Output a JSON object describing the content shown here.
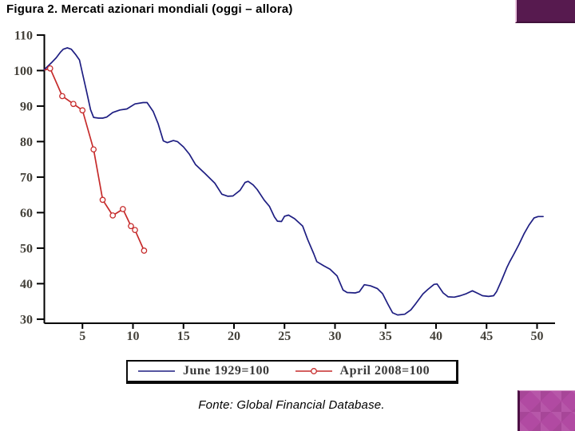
{
  "title": "Figura 2. Mercati azionari mondiali (oggi – allora)",
  "source_note": "Fonte: Global Financial Database.",
  "decor": {
    "top_right_color": "#571a4f",
    "bottom_right_color": "#b14aa2"
  },
  "chart_data": {
    "type": "line",
    "title": "",
    "xlabel": "",
    "ylabel": "",
    "xlim": [
      0,
      51.5
    ],
    "ylim": [
      30,
      110
    ],
    "x_ticks": [
      5,
      10,
      15,
      20,
      25,
      30,
      35,
      40,
      45,
      50
    ],
    "y_ticks": [
      30,
      40,
      50,
      60,
      70,
      80,
      90,
      100,
      110
    ],
    "grid": false,
    "legend_position": "bottom-box",
    "series": [
      {
        "name": "June 1929=100",
        "color": "#1e1e82",
        "marker": "none",
        "points": [
          [
            1.2,
            100.2
          ],
          [
            1.6,
            101.3
          ],
          [
            2,
            102.4
          ],
          [
            2.4,
            103.6
          ],
          [
            2.8,
            105.1
          ],
          [
            3.1,
            106
          ],
          [
            3.5,
            106.4
          ],
          [
            3.9,
            106
          ],
          [
            4.3,
            104.6
          ],
          [
            4.7,
            103
          ],
          [
            5,
            99.2
          ],
          [
            5.4,
            94.2
          ],
          [
            5.8,
            89
          ],
          [
            6.1,
            86.8
          ],
          [
            6.6,
            86.6
          ],
          [
            7,
            86.6
          ],
          [
            7.4,
            86.9
          ],
          [
            8,
            88.2
          ],
          [
            8.7,
            88.9
          ],
          [
            9.4,
            89.2
          ],
          [
            10.2,
            90.6
          ],
          [
            11,
            91
          ],
          [
            11.4,
            91
          ],
          [
            12,
            88.5
          ],
          [
            12.5,
            85
          ],
          [
            13,
            80.2
          ],
          [
            13.4,
            79.7
          ],
          [
            14,
            80.3
          ],
          [
            14.4,
            80
          ],
          [
            15,
            78.5
          ],
          [
            15.6,
            76.4
          ],
          [
            16.2,
            73.5
          ],
          [
            17.1,
            71.1
          ],
          [
            18.1,
            68.3
          ],
          [
            18.8,
            65.2
          ],
          [
            19.4,
            64.6
          ],
          [
            19.9,
            64.7
          ],
          [
            20.6,
            66.3
          ],
          [
            21.1,
            68.5
          ],
          [
            21.4,
            68.8
          ],
          [
            21.9,
            67.8
          ],
          [
            22.3,
            66.5
          ],
          [
            23,
            63.5
          ],
          [
            23.5,
            61.8
          ],
          [
            24,
            58.8
          ],
          [
            24.3,
            57.6
          ],
          [
            24.7,
            57.5
          ],
          [
            25,
            59
          ],
          [
            25.4,
            59.3
          ],
          [
            26,
            58.3
          ],
          [
            26.8,
            56.2
          ],
          [
            27.3,
            52.4
          ],
          [
            27.9,
            48.4
          ],
          [
            28.2,
            46.2
          ],
          [
            28.9,
            45
          ],
          [
            29.5,
            44.1
          ],
          [
            30.2,
            42.2
          ],
          [
            30.8,
            38.2
          ],
          [
            31.2,
            37.5
          ],
          [
            32,
            37.4
          ],
          [
            32.4,
            37.7
          ],
          [
            32.9,
            39.7
          ],
          [
            33.5,
            39.4
          ],
          [
            34.2,
            38.6
          ],
          [
            34.7,
            37.2
          ],
          [
            35.2,
            34.4
          ],
          [
            35.7,
            31.8
          ],
          [
            36.2,
            31.2
          ],
          [
            36.9,
            31.4
          ],
          [
            37.5,
            32.6
          ],
          [
            38,
            34.4
          ],
          [
            38.7,
            37.1
          ],
          [
            39.2,
            38.4
          ],
          [
            39.8,
            39.8
          ],
          [
            40.1,
            39.9
          ],
          [
            40.7,
            37.4
          ],
          [
            41.2,
            36.3
          ],
          [
            41.8,
            36.2
          ],
          [
            42.4,
            36.6
          ],
          [
            43,
            37.2
          ],
          [
            43.6,
            38
          ],
          [
            44.1,
            37.3
          ],
          [
            44.6,
            36.6
          ],
          [
            45.2,
            36.4
          ],
          [
            45.7,
            36.6
          ],
          [
            46,
            37.8
          ],
          [
            46.5,
            41
          ],
          [
            47,
            44.5
          ],
          [
            47.3,
            46.2
          ],
          [
            47.7,
            48.3
          ],
          [
            48.2,
            51
          ],
          [
            48.7,
            54
          ],
          [
            49.2,
            56.5
          ],
          [
            49.7,
            58.5
          ],
          [
            50.1,
            58.9
          ],
          [
            50.6,
            58.9
          ]
        ]
      },
      {
        "name": "April 2008=100",
        "color": "#c62b2b",
        "marker": "circle",
        "marker_skip_first": true,
        "points": [
          [
            1.3,
            100.2
          ],
          [
            1.8,
            100.6
          ],
          [
            3,
            92.8
          ],
          [
            4.1,
            90.6
          ],
          [
            5,
            88.8
          ],
          [
            6.1,
            77.8
          ],
          [
            7,
            63.6
          ],
          [
            8,
            59.2
          ],
          [
            9,
            61
          ],
          [
            9.8,
            56.2
          ],
          [
            10.2,
            55.1
          ],
          [
            11.1,
            49.3
          ]
        ]
      }
    ]
  }
}
